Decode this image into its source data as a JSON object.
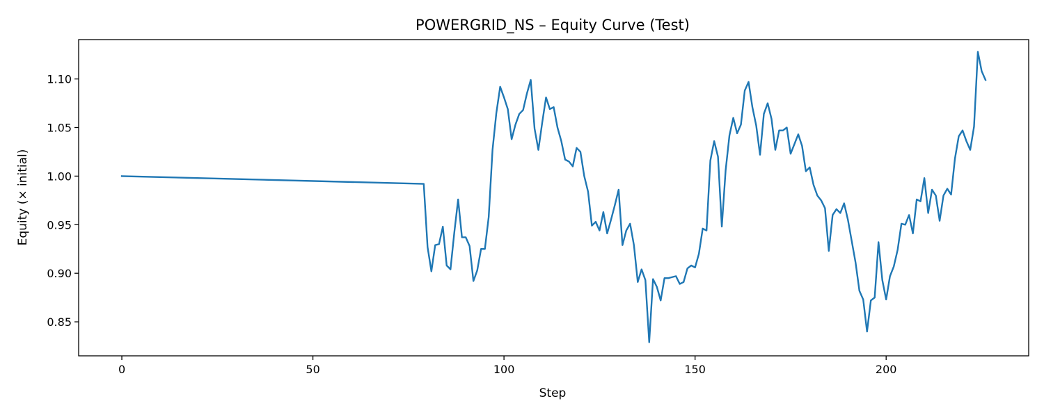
{
  "chart_data": {
    "type": "line",
    "title": "POWERGRID_NS – Equity Curve (Test)",
    "xlabel": "Step",
    "ylabel": "Equity (× initial)",
    "xlim": [
      -11.3,
      237.3
    ],
    "ylim": [
      0.815,
      1.1405
    ],
    "xticks": [
      0,
      50,
      100,
      150,
      200
    ],
    "yticks": [
      0.85,
      0.9,
      0.95,
      1.0,
      1.05,
      1.1
    ],
    "ytick_labels": [
      "0.85",
      "0.90",
      "0.95",
      "1.00",
      "1.05",
      "1.10"
    ],
    "grid": false,
    "legend": "none",
    "series": [
      {
        "color": "#1f77b4",
        "x": [
          0,
          79,
          80,
          81,
          82,
          83,
          84,
          85,
          86,
          87,
          88,
          89,
          90,
          91,
          92,
          93,
          94,
          95,
          96,
          97,
          98,
          99,
          100,
          101,
          102,
          103,
          104,
          105,
          106,
          107,
          108,
          109,
          110,
          111,
          112,
          113,
          114,
          115,
          116,
          117,
          118,
          119,
          120,
          121,
          122,
          123,
          124,
          125,
          126,
          127,
          128,
          129,
          130,
          131,
          132,
          133,
          134,
          135,
          136,
          137,
          138,
          139,
          140,
          141,
          142,
          143,
          144,
          145,
          146,
          147,
          148,
          149,
          150,
          151,
          152,
          153,
          154,
          155,
          156,
          157,
          158,
          159,
          160,
          161,
          162,
          163,
          164,
          165,
          166,
          167,
          168,
          169,
          170,
          171,
          172,
          173,
          174,
          175,
          176,
          177,
          178,
          179,
          180,
          181,
          182,
          183,
          184,
          185,
          186,
          187,
          188,
          189,
          190,
          191,
          192,
          193,
          194,
          195,
          196,
          197,
          198,
          199,
          200,
          201,
          202,
          203,
          204,
          205,
          206,
          207,
          208,
          209,
          210,
          211,
          212,
          213,
          214,
          215,
          216,
          217,
          218,
          219,
          220,
          221,
          222,
          223,
          224,
          225,
          226
        ],
        "y": [
          1.0,
          0.992,
          0.927,
          0.902,
          0.929,
          0.93,
          0.948,
          0.908,
          0.904,
          0.942,
          0.976,
          0.937,
          0.937,
          0.928,
          0.892,
          0.903,
          0.925,
          0.925,
          0.958,
          1.027,
          1.065,
          1.092,
          1.081,
          1.069,
          1.038,
          1.053,
          1.064,
          1.068,
          1.085,
          1.099,
          1.049,
          1.027,
          1.055,
          1.081,
          1.069,
          1.071,
          1.05,
          1.036,
          1.017,
          1.015,
          1.01,
          1.029,
          1.025,
          1.0,
          0.984,
          0.949,
          0.953,
          0.944,
          0.963,
          0.941,
          0.955,
          0.97,
          0.986,
          0.929,
          0.944,
          0.951,
          0.929,
          0.891,
          0.904,
          0.893,
          0.829,
          0.894,
          0.886,
          0.872,
          0.895,
          0.895,
          0.896,
          0.897,
          0.889,
          0.891,
          0.905,
          0.908,
          0.906,
          0.92,
          0.946,
          0.944,
          1.016,
          1.036,
          1.02,
          0.948,
          1.006,
          1.042,
          1.06,
          1.044,
          1.053,
          1.088,
          1.097,
          1.071,
          1.052,
          1.022,
          1.064,
          1.075,
          1.059,
          1.027,
          1.047,
          1.047,
          1.05,
          1.023,
          1.033,
          1.043,
          1.031,
          1.005,
          1.009,
          0.991,
          0.98,
          0.975,
          0.967,
          0.923,
          0.96,
          0.966,
          0.962,
          0.972,
          0.955,
          0.933,
          0.911,
          0.882,
          0.873,
          0.84,
          0.872,
          0.875,
          0.932,
          0.893,
          0.873,
          0.897,
          0.907,
          0.924,
          0.951,
          0.95,
          0.96,
          0.941,
          0.976,
          0.974,
          0.998,
          0.962,
          0.986,
          0.98,
          0.954,
          0.98,
          0.987,
          0.981,
          1.018,
          1.041,
          1.047,
          1.036,
          1.027,
          1.051,
          1.128,
          1.108,
          1.099
        ]
      }
    ]
  }
}
